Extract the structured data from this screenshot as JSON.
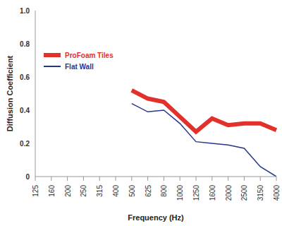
{
  "chart_data": {
    "type": "line",
    "x_label": "Frequency (Hz)",
    "y_label": "Diffusion Coefficient",
    "categories": [
      "125",
      "160",
      "200",
      "250",
      "315",
      "400",
      "500",
      "625",
      "800",
      "1000",
      "1250",
      "1600",
      "2000",
      "2500",
      "3150",
      "4000"
    ],
    "series": [
      {
        "name": "ProFoam Tiles",
        "color": "#e2302b",
        "values": [
          null,
          null,
          null,
          null,
          null,
          null,
          0.52,
          0.47,
          0.45,
          0.36,
          0.27,
          0.35,
          0.31,
          0.32,
          0.32,
          0.28
        ]
      },
      {
        "name": "Flat Wall",
        "color": "#28358c",
        "values": [
          null,
          null,
          null,
          null,
          null,
          null,
          0.44,
          0.39,
          0.4,
          0.32,
          0.21,
          0.2,
          0.19,
          0.17,
          0.06,
          0.0
        ]
      }
    ],
    "ylim": [
      0,
      1
    ],
    "yticks": [
      0,
      0.2,
      0.4,
      0.6,
      0.8,
      {
        "value": 1,
        "label": "1.0"
      }
    ],
    "grid": false,
    "legend": "upper left"
  }
}
